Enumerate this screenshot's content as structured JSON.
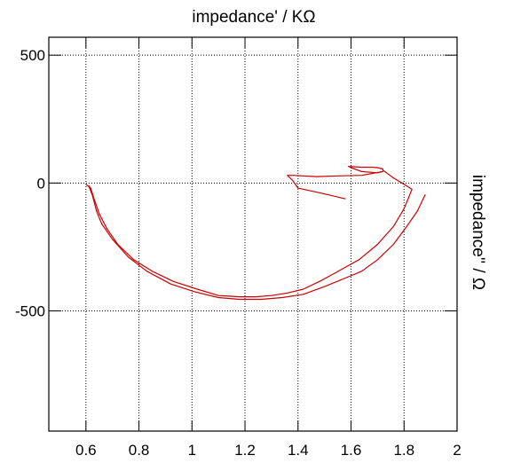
{
  "chart_data": {
    "type": "line",
    "title": "impedance' / KΩ",
    "xlabel": "",
    "ylabel": "impedance'' / Ω",
    "xlim": [
      0.46,
      2.0
    ],
    "ylim": [
      -970,
      570
    ],
    "x_ticks": [
      0.6,
      0.8,
      1.0,
      1.2,
      1.4,
      1.6,
      1.8,
      2.0
    ],
    "x_tick_labels": [
      "0.6",
      "0.8",
      "1",
      "1.2",
      "1.4",
      "1.6",
      "1.8",
      "2"
    ],
    "y_ticks": [
      500,
      0,
      -500
    ],
    "y_tick_labels": [
      "500",
      "0",
      "-500"
    ],
    "grid": true,
    "line_color": "#cc0000",
    "series": [
      {
        "x": [
          0.61,
          0.618,
          0.63,
          0.65,
          0.68,
          0.72,
          0.78,
          0.85,
          0.93,
          1.02,
          1.1,
          1.18,
          1.24,
          1.3,
          1.36,
          1.42,
          1.49,
          1.56,
          1.63,
          1.7,
          1.76,
          1.8,
          1.83,
          1.8,
          1.76,
          1.74,
          1.72,
          1.72,
          1.7,
          1.68,
          1.64,
          1.59,
          1.6,
          1.64,
          1.7,
          1.72,
          1.64,
          1.55,
          1.47,
          1.38,
          1.36,
          1.38,
          1.4,
          1.49,
          1.58
        ],
        "y": [
          -10,
          -20,
          -60,
          -120,
          -180,
          -240,
          -300,
          -345,
          -385,
          -415,
          -440,
          -445,
          -445,
          -440,
          -430,
          -415,
          -380,
          -340,
          -300,
          -240,
          -170,
          -100,
          -25,
          -5,
          20,
          35,
          50,
          55,
          60,
          62,
          62,
          65,
          60,
          45,
          40,
          45,
          30,
          28,
          25,
          30,
          30,
          10,
          -20,
          -40,
          -62
        ]
      },
      {
        "x": [
          0.6,
          0.612,
          0.625,
          0.64,
          0.66,
          0.7,
          0.76,
          0.83,
          0.92,
          1.01,
          1.1,
          1.18,
          1.26,
          1.34,
          1.42,
          1.5,
          1.57,
          1.64,
          1.7,
          1.76,
          1.81,
          1.85,
          1.88
        ],
        "y": [
          -5,
          -15,
          -50,
          -110,
          -160,
          -220,
          -290,
          -345,
          -395,
          -425,
          -448,
          -455,
          -455,
          -448,
          -435,
          -405,
          -375,
          -345,
          -300,
          -240,
          -170,
          -110,
          -45
        ]
      }
    ]
  }
}
